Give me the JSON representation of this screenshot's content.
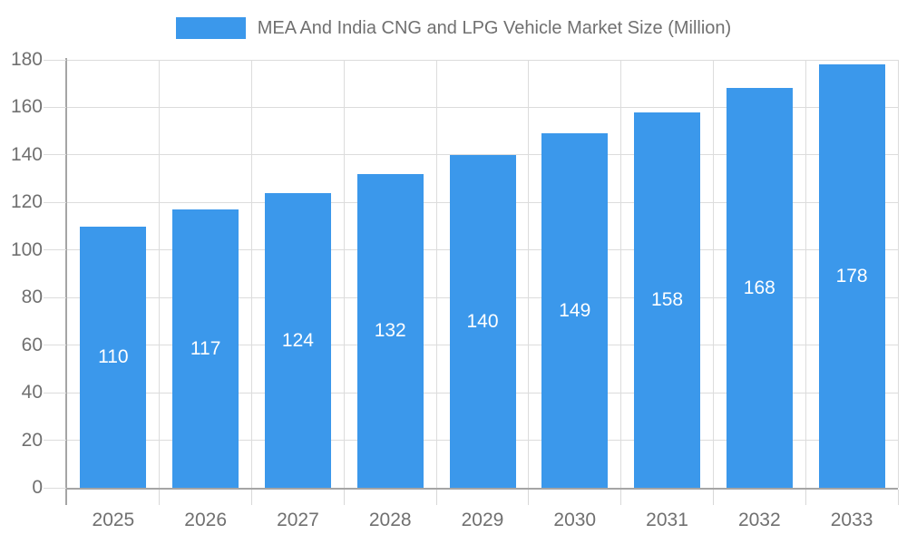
{
  "chart_data": {
    "type": "bar",
    "title": "MEA And India CNG and LPG Vehicle Market Size (Million)",
    "categories": [
      "2025",
      "2026",
      "2027",
      "2028",
      "2029",
      "2030",
      "2031",
      "2032",
      "2033"
    ],
    "values": [
      110,
      117,
      124,
      132,
      140,
      149,
      158,
      168,
      178
    ],
    "xlabel": "",
    "ylabel": "",
    "ylim": [
      0,
      180
    ],
    "y_ticks": [
      0,
      20,
      40,
      60,
      80,
      100,
      120,
      140,
      160,
      180
    ],
    "grid": "horizontal-and-vertical",
    "legend_position": "top-center",
    "value_labels": "inside-center",
    "bar_color": "#3B98EB",
    "value_label_color": "#FFFFFF",
    "axis_color": "#A5A5A5",
    "grid_color": "#DCDCDC",
    "text_color": "#707070",
    "background_color": "#FFFFFF"
  }
}
